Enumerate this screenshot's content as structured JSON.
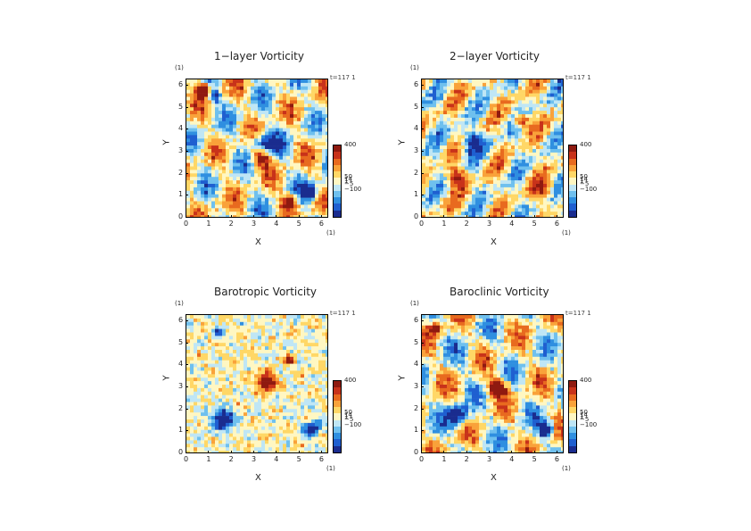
{
  "figure": {
    "panels": [
      {
        "title": "1−layer Vorticity",
        "time": "t=117 1"
      },
      {
        "title": "2−layer Vorticity",
        "time": "t=117 1"
      },
      {
        "title": "Barotropic Vorticity",
        "time": "t=117 1"
      },
      {
        "title": "Baroclinic Vorticity",
        "time": "t=117 1"
      }
    ]
  },
  "chart_data": [
    {
      "type": "heatmap",
      "title": "1−layer Vorticity",
      "annotation": "t=117 1",
      "xlabel": "X",
      "ylabel": "Y",
      "x_unit": "(1)",
      "y_unit": "(1)",
      "xlim": [
        0,
        6.28
      ],
      "ylim": [
        0,
        6.28
      ],
      "xticks": [
        "0",
        "1",
        "2",
        "3",
        "4",
        "5",
        "6"
      ],
      "yticks": [
        "0",
        "1",
        "2",
        "3",
        "4",
        "5",
        "6"
      ],
      "colorbar": {
        "labels": [
          "400",
          "50",
          "14",
          "1",
          "−5",
          "−100"
        ],
        "values": [
          400,
          50,
          14,
          1,
          -5,
          -100
        ]
      }
    },
    {
      "type": "heatmap",
      "title": "2−layer Vorticity",
      "annotation": "t=117 1",
      "xlabel": "X",
      "ylabel": "Y",
      "x_unit": "(1)",
      "y_unit": "(1)",
      "xlim": [
        0,
        6.28
      ],
      "ylim": [
        0,
        6.28
      ],
      "xticks": [
        "0",
        "1",
        "2",
        "3",
        "4",
        "5",
        "6"
      ],
      "yticks": [
        "0",
        "1",
        "2",
        "3",
        "4",
        "5",
        "6"
      ],
      "colorbar": {
        "labels": [
          "400",
          "50",
          "14",
          "1",
          "−5",
          "−100"
        ],
        "values": [
          400,
          50,
          14,
          1,
          -5,
          -100
        ]
      }
    },
    {
      "type": "heatmap",
      "title": "Barotropic Vorticity",
      "annotation": "t=117 1",
      "xlabel": "X",
      "ylabel": "Y",
      "x_unit": "(1)",
      "y_unit": "(1)",
      "xlim": [
        0,
        6.28
      ],
      "ylim": [
        0,
        6.28
      ],
      "xticks": [
        "0",
        "1",
        "2",
        "3",
        "4",
        "5",
        "6"
      ],
      "yticks": [
        "0",
        "1",
        "2",
        "3",
        "4",
        "5",
        "6"
      ],
      "colorbar": {
        "labels": [
          "400",
          "50",
          "14",
          "1",
          "−5",
          "−100"
        ],
        "values": [
          400,
          50,
          14,
          1,
          -5,
          -100
        ]
      }
    },
    {
      "type": "heatmap",
      "title": "Baroclinic Vorticity",
      "annotation": "t=117 1",
      "xlabel": "X",
      "ylabel": "Y",
      "x_unit": "(1)",
      "y_unit": "(1)",
      "xlim": [
        0,
        6.28
      ],
      "ylim": [
        0,
        6.28
      ],
      "xticks": [
        "0",
        "1",
        "2",
        "3",
        "4",
        "5",
        "6"
      ],
      "yticks": [
        "0",
        "1",
        "2",
        "3",
        "4",
        "5",
        "6"
      ],
      "colorbar": {
        "labels": [
          "400",
          "50",
          "14",
          "1",
          "−5",
          "−100"
        ],
        "values": [
          400,
          50,
          14,
          1,
          -5,
          -100
        ]
      }
    }
  ],
  "colors": {
    "colormap": [
      "#1a2c8f",
      "#1f5fd0",
      "#2f8fe0",
      "#6fc0ee",
      "#bfe6f5",
      "#fff7c2",
      "#ffd766",
      "#f9a23a",
      "#e86a1f",
      "#c8321a",
      "#8f1a10"
    ]
  }
}
